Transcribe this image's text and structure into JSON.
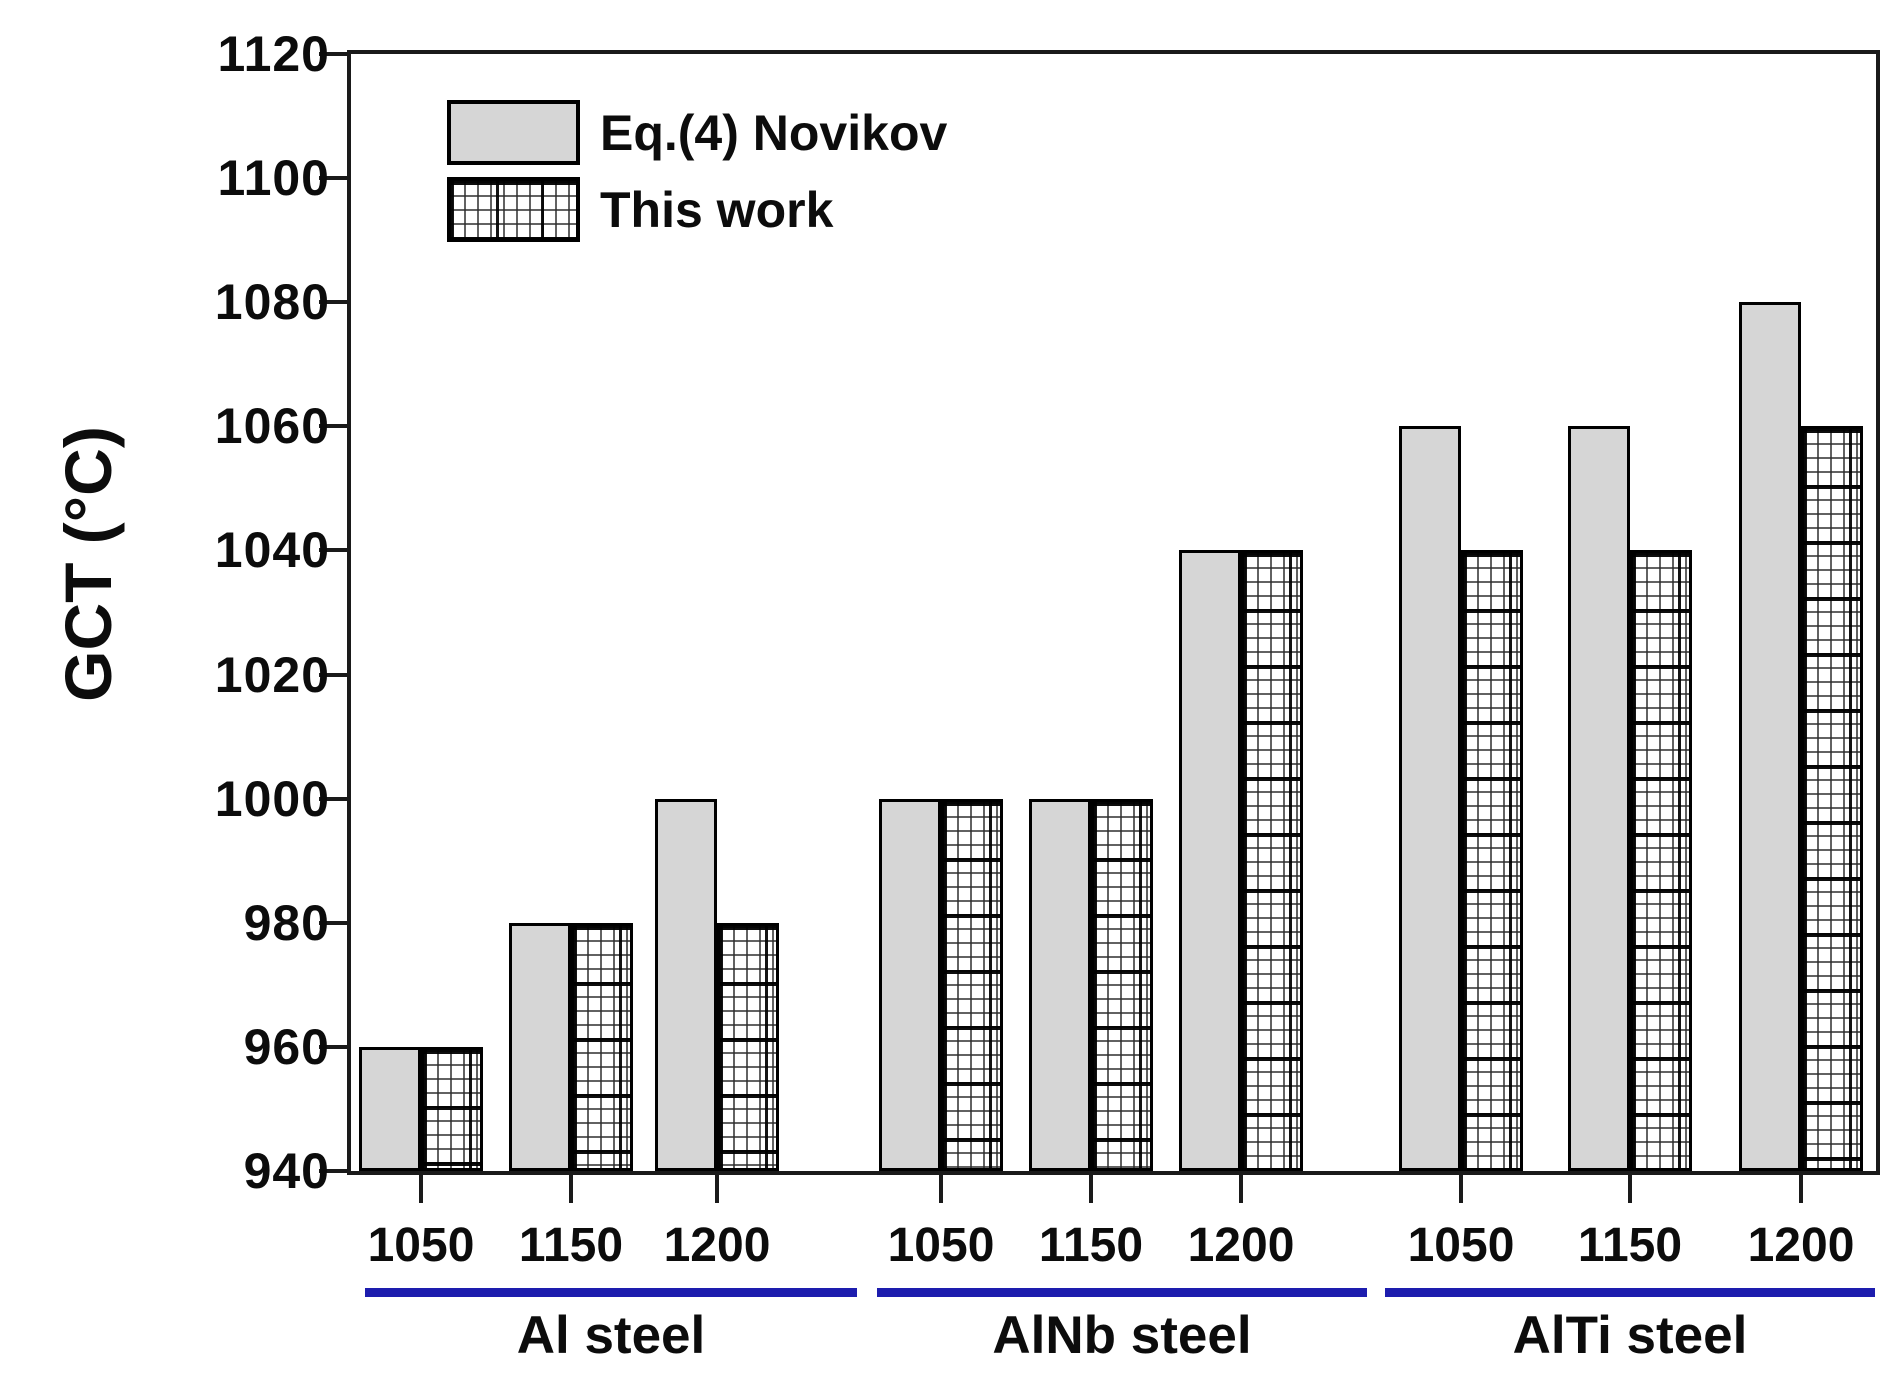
{
  "figure": {
    "background": "#ffffff"
  },
  "chart_data": {
    "type": "bar",
    "title": "",
    "ylabel": "GCT (°C)",
    "xlabel": "",
    "ylim": [
      940,
      1120
    ],
    "yticks": [
      940,
      960,
      980,
      1000,
      1020,
      1040,
      1060,
      1080,
      1100,
      1120
    ],
    "grid": false,
    "legend_position": "top-left",
    "legend": [
      "Eq.(4) Novikov",
      "This work"
    ],
    "groups": [
      "Al steel",
      "AlNb steel",
      "AlTi steel"
    ],
    "categories": [
      "1050",
      "1150",
      "1200"
    ],
    "series": [
      {
        "name": "Eq.(4) Novikov",
        "pattern": "solid-gray",
        "values": [
          [
            960,
            980,
            1000
          ],
          [
            1000,
            1000,
            1040
          ],
          [
            1060,
            1060,
            1080
          ]
        ]
      },
      {
        "name": "This work",
        "pattern": "crosshatch-grid",
        "values": [
          [
            960,
            980,
            980
          ],
          [
            1000,
            1000,
            1040
          ],
          [
            1040,
            1040,
            1060
          ]
        ]
      }
    ],
    "colors": {
      "novikov_bar_fill": "#d6d6d6",
      "bar_border": "#000000",
      "hatch_line": "#2d2d2d",
      "axis_line": "#1a1a1a",
      "label_text": "#0c0c0c",
      "group_underline": "#1d1dae"
    }
  }
}
